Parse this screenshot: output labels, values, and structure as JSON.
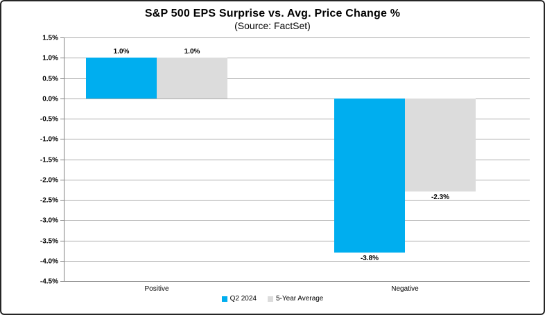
{
  "chart": {
    "title": "S&P 500 EPS Surprise vs. Avg. Price Change %",
    "subtitle": "(Source: FactSet)"
  },
  "chart_data": {
    "type": "bar",
    "title": "S&P 500 EPS Surprise vs. Avg. Price Change %",
    "subtitle": "(Source: FactSet)",
    "categories": [
      "Positive",
      "Negative"
    ],
    "series": [
      {
        "name": "Q2 2024",
        "color": "#00AEEF",
        "values": [
          1.0,
          -3.8
        ],
        "value_labels": [
          "1.0%",
          "-3.8%"
        ]
      },
      {
        "name": "5-Year Average",
        "color": "#DCDCDC",
        "values": [
          1.0,
          -2.3
        ],
        "value_labels": [
          "1.0%",
          "-2.3%"
        ]
      }
    ],
    "ylabel": "",
    "xlabel": "",
    "ylim": [
      -4.5,
      1.5
    ],
    "ytick_step": 0.5,
    "ytick_labels": [
      "1.5%",
      "1.0%",
      "0.5%",
      "0.0%",
      "-0.5%",
      "-1.0%",
      "-1.5%",
      "-2.0%",
      "-2.5%",
      "-3.0%",
      "-3.5%",
      "-4.0%",
      "-4.5%"
    ],
    "grid": true,
    "legend_position": "bottom",
    "colors": {
      "q2_2024": "#00AEEF",
      "five_year_average": "#DCDCDC",
      "gridline": "#ABABAB",
      "axis": "#7F7F7F",
      "text": "#000000",
      "border": "#262626",
      "background": "#FFFFFF"
    }
  }
}
